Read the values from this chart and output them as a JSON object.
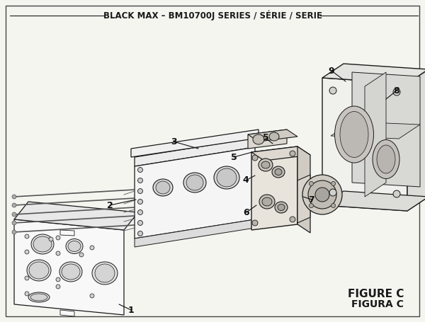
{
  "title": "BLACK MAX – BM10700J SERIES / SÉRIE / SERIE",
  "figure_label": "FIGURE C",
  "figure_label2": "FIGURA C",
  "bg_color": "#f5f5f0",
  "line_color": "#1a1a1a",
  "title_fontsize": 8.5,
  "label_fontsize": 8,
  "figure_label_fontsize": 10
}
